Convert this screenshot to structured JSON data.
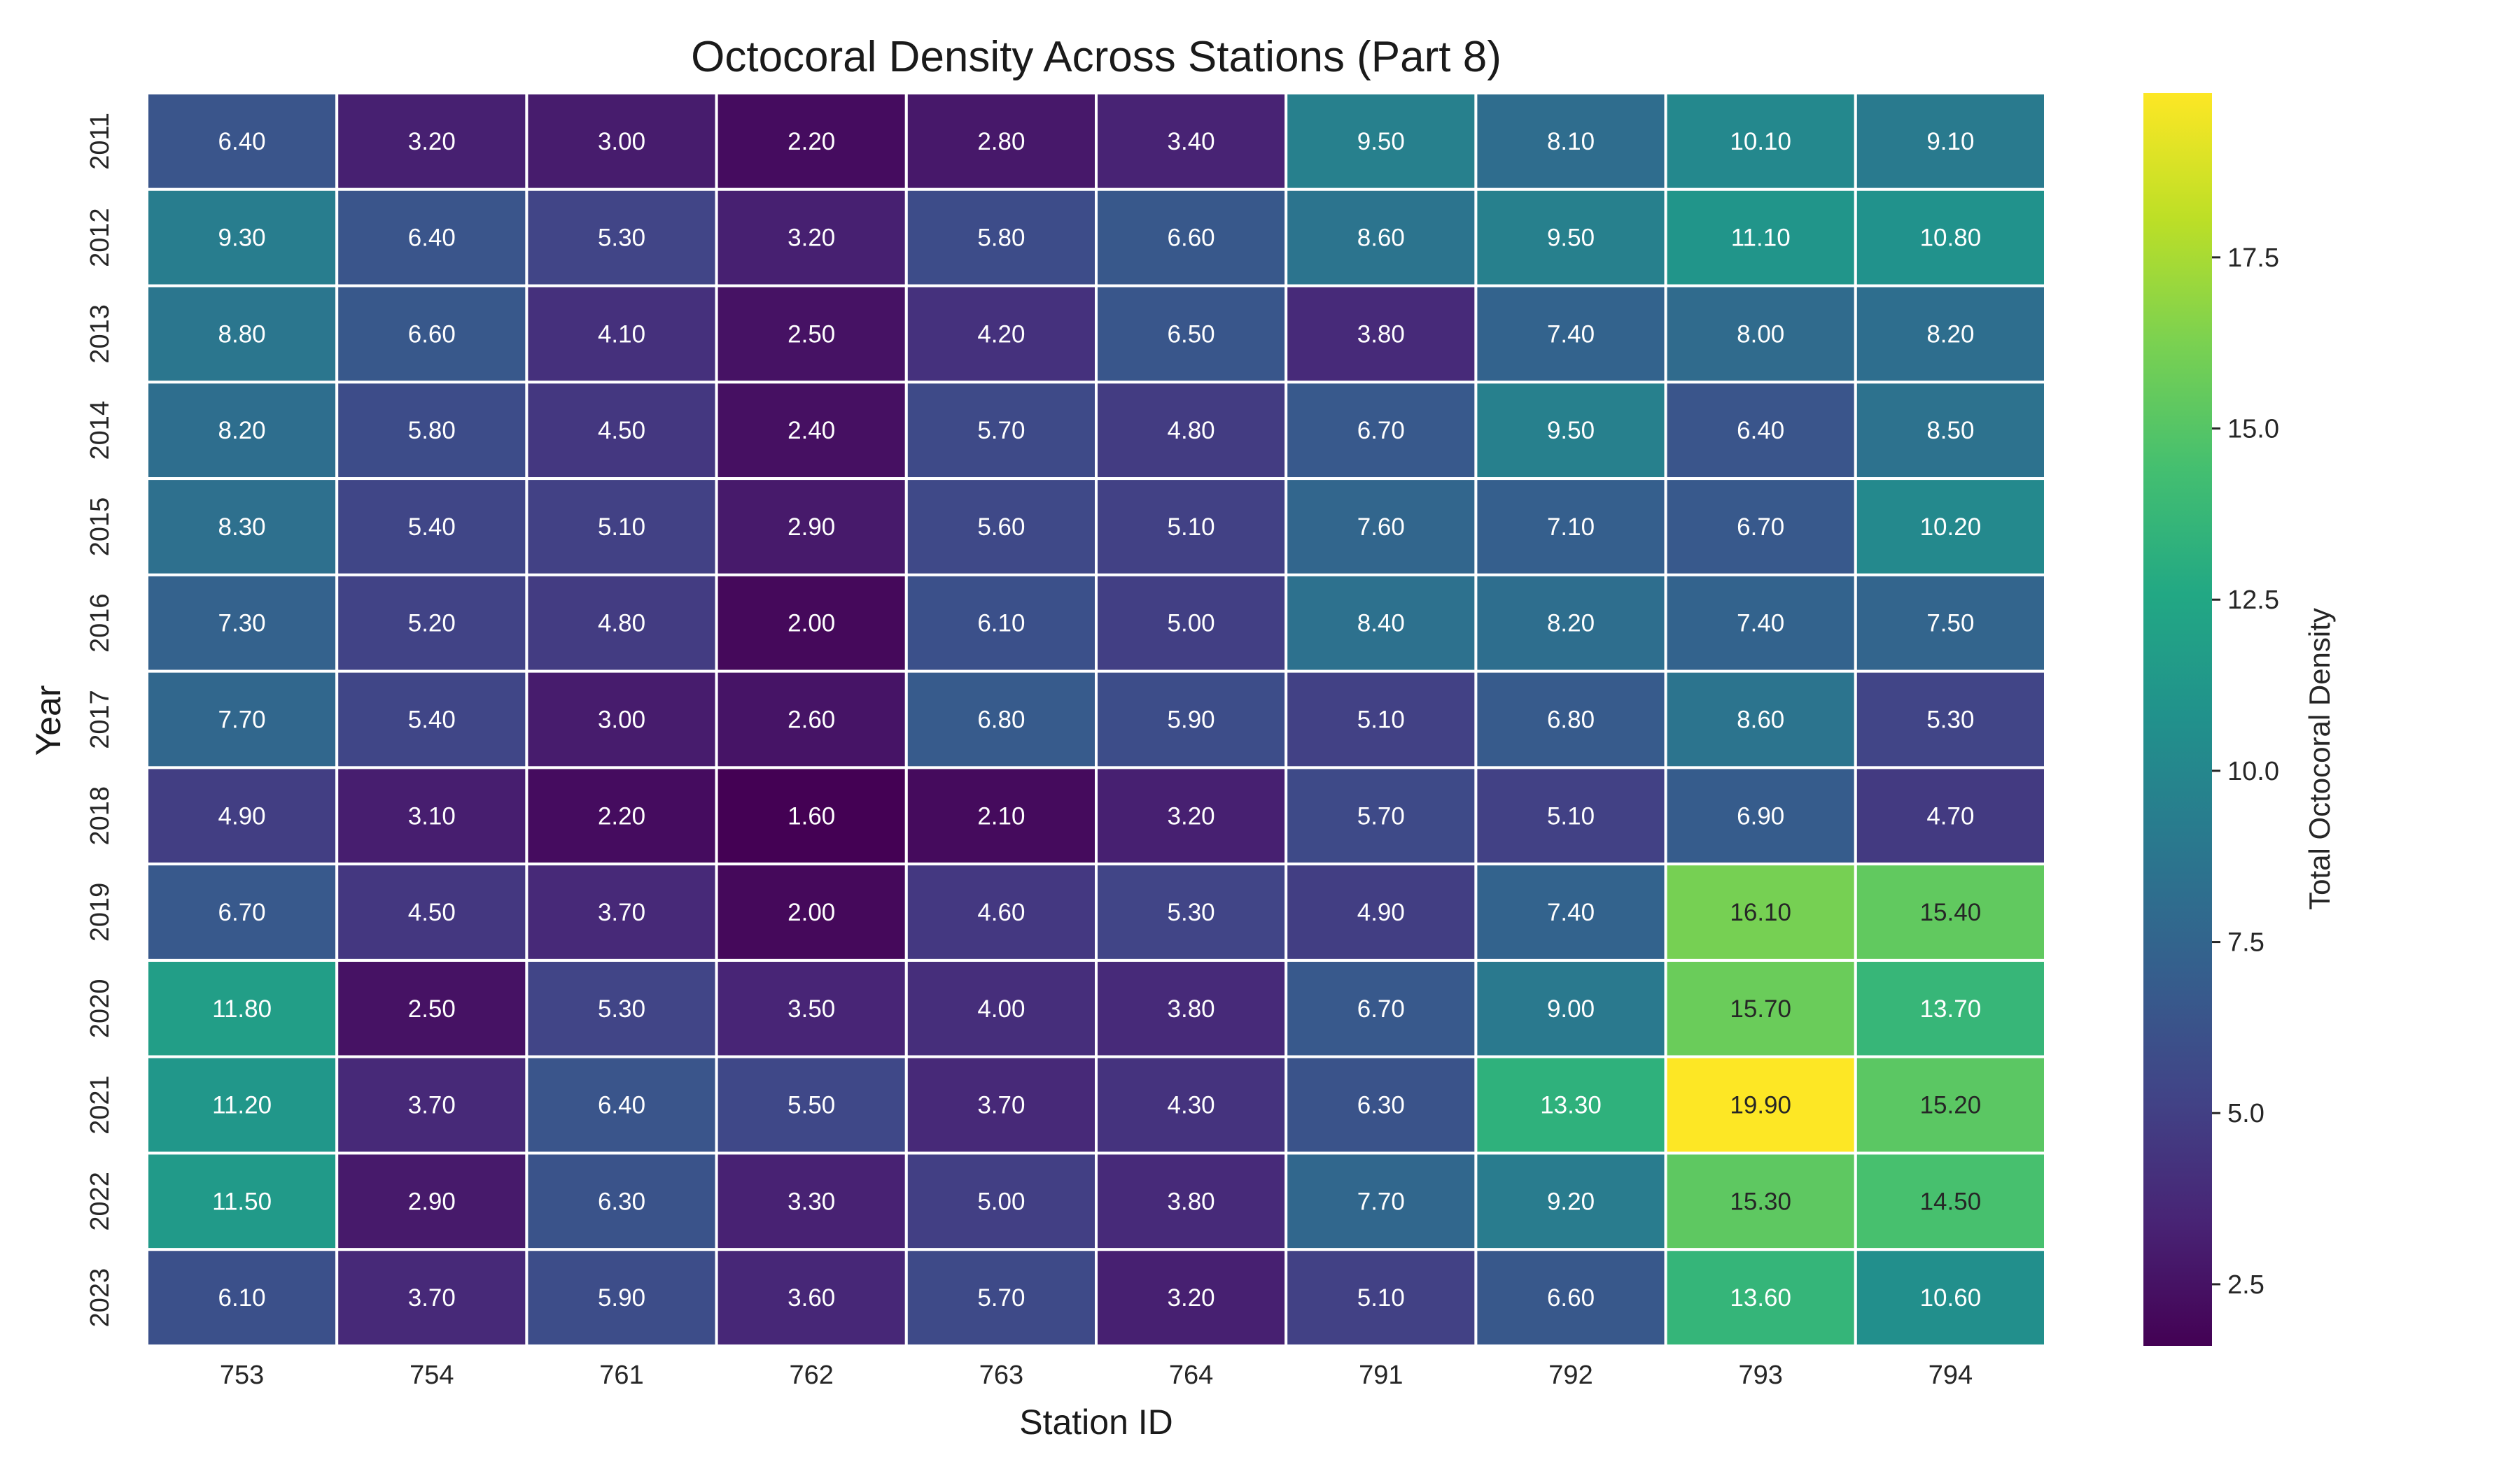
{
  "chart_data": {
    "type": "heatmap",
    "title": "Octocoral Density Across Stations (Part 8)",
    "xlabel": "Station ID",
    "ylabel": "Year",
    "colorbar_label": "Total Octocoral Density",
    "colormap": "viridis",
    "value_format": "2 decimals",
    "color_range": [
      1.6,
      19.9
    ],
    "colorbar_ticks": [
      "2.5",
      "5.0",
      "7.5",
      "10.0",
      "12.5",
      "15.0",
      "17.5"
    ],
    "x_categories": [
      "753",
      "754",
      "761",
      "762",
      "763",
      "764",
      "791",
      "792",
      "793",
      "794"
    ],
    "y_categories": [
      "2011",
      "2012",
      "2013",
      "2014",
      "2015",
      "2016",
      "2017",
      "2018",
      "2019",
      "2020",
      "2021",
      "2022",
      "2023"
    ],
    "values": [
      [
        6.4,
        3.2,
        3.0,
        2.2,
        2.8,
        3.4,
        9.5,
        8.1,
        10.1,
        9.1
      ],
      [
        9.3,
        6.4,
        5.3,
        3.2,
        5.8,
        6.6,
        8.6,
        9.5,
        11.1,
        10.8
      ],
      [
        8.8,
        6.6,
        4.1,
        2.5,
        4.2,
        6.5,
        3.8,
        7.4,
        8.0,
        8.2
      ],
      [
        8.2,
        5.8,
        4.5,
        2.4,
        5.7,
        4.8,
        6.7,
        9.5,
        6.4,
        8.5
      ],
      [
        8.3,
        5.4,
        5.1,
        2.9,
        5.6,
        5.1,
        7.6,
        7.1,
        6.7,
        10.2
      ],
      [
        7.3,
        5.2,
        4.8,
        2.0,
        6.1,
        5.0,
        8.4,
        8.2,
        7.4,
        7.5
      ],
      [
        7.7,
        5.4,
        3.0,
        2.6,
        6.8,
        5.9,
        5.1,
        6.8,
        8.6,
        5.3
      ],
      [
        4.9,
        3.1,
        2.2,
        1.6,
        2.1,
        3.2,
        5.7,
        5.1,
        6.9,
        4.7
      ],
      [
        6.7,
        4.5,
        3.7,
        2.0,
        4.6,
        5.3,
        4.9,
        7.4,
        16.1,
        15.4
      ],
      [
        11.8,
        2.5,
        5.3,
        3.5,
        4.0,
        3.8,
        6.7,
        9.0,
        15.7,
        13.7
      ],
      [
        11.2,
        3.7,
        6.4,
        5.5,
        3.7,
        4.3,
        6.3,
        13.3,
        19.9,
        15.2
      ],
      [
        11.5,
        2.9,
        6.3,
        3.3,
        5.0,
        3.8,
        7.7,
        9.2,
        15.3,
        14.5
      ],
      [
        6.1,
        3.7,
        5.9,
        3.6,
        5.7,
        3.2,
        5.1,
        6.6,
        13.6,
        10.6
      ]
    ]
  }
}
